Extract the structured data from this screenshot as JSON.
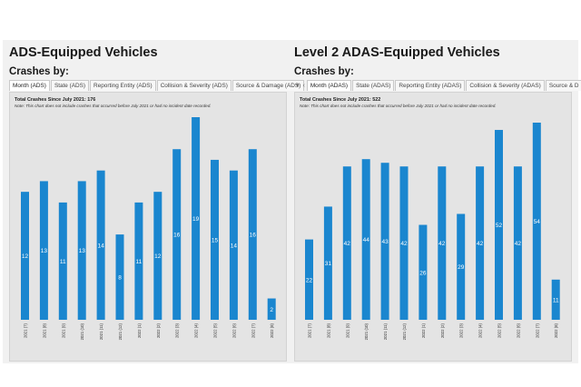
{
  "colors": {
    "bar": "#1a86cf",
    "label": "#ffffff",
    "background": "#e4e4e4"
  },
  "panels": [
    {
      "title": "ADS-Equipped Vehicles",
      "crashes_by": "Crashes by:",
      "tabs": [
        "Month (ADS)",
        "State (ADS)",
        "Reporting Entity (ADS)",
        "Collision & Severity (ADS)",
        "Source & Damage (ADS)"
      ],
      "nav_icons": [],
      "total_text": "Total Crashes Since July 2021: 176",
      "note_text": "Note: This chart does not include crashes that occurred before July 2021 or had no incident date recorded."
    },
    {
      "title": "Level 2 ADAS-Equipped Vehicles",
      "crashes_by": "Crashes by:",
      "tabs": [
        "Month (ADAS)",
        "State (ADAS)",
        "Reporting Entity (ADAS)",
        "Collision & Severity (ADAS)",
        "Source & D"
      ],
      "nav_icons": [
        "caret-down-icon",
        "chevron-left-icon",
        "chevron-right-icon"
      ],
      "total_text": "Total Crashes Since July 2021: 522",
      "note_text": "Note: This chart does not include crashes that occurred before July 2021 or had no incident date recorded."
    }
  ],
  "chart_data": [
    {
      "type": "bar",
      "title": "ADS-Equipped Vehicles",
      "categories": [
        "2021 (7)",
        "2021 (8)",
        "2021 (9)",
        "2021 (10)",
        "2021 (11)",
        "2021 (12)",
        "2022 (1)",
        "2022 (2)",
        "2022 (3)",
        "2022 (4)",
        "2022 (5)",
        "2022 (6)",
        "2022 (7)",
        "2022 (8)"
      ],
      "values": [
        12,
        13,
        11,
        13,
        14,
        8,
        11,
        12,
        16,
        19,
        15,
        14,
        16,
        2
      ],
      "ylim": [
        0,
        19
      ],
      "xlabel": "",
      "ylabel": ""
    },
    {
      "type": "bar",
      "title": "Level 2 ADAS-Equipped Vehicles",
      "categories": [
        "2021 (7)",
        "2021 (8)",
        "2021 (9)",
        "2021 (10)",
        "2021 (11)",
        "2021 (12)",
        "2022 (1)",
        "2022 (2)",
        "2022 (3)",
        "2022 (4)",
        "2022 (5)",
        "2022 (6)",
        "2022 (7)",
        "2022 (8)"
      ],
      "values": [
        22,
        31,
        42,
        44,
        43,
        42,
        26,
        42,
        29,
        42,
        52,
        42,
        54,
        11
      ],
      "ylim": [
        0,
        54
      ],
      "xlabel": "",
      "ylabel": ""
    }
  ]
}
